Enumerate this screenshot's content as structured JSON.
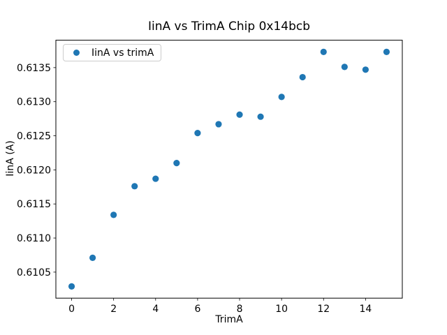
{
  "chart_data": {
    "type": "scatter",
    "title": "IinA vs TrimA Chip 0x14bcb",
    "xlabel": "TrimA",
    "ylabel": "IinA (A)",
    "legend": {
      "label": "IinA vs trimA",
      "position": "upper left"
    },
    "marker_color": "#1f77b4",
    "x": [
      0,
      1,
      2,
      3,
      4,
      5,
      6,
      7,
      8,
      9,
      10,
      11,
      12,
      13,
      14,
      15
    ],
    "y": [
      0.61029,
      0.61071,
      0.61134,
      0.61176,
      0.61187,
      0.6121,
      0.61254,
      0.61267,
      0.61281,
      0.61278,
      0.61307,
      0.61336,
      0.61373,
      0.61351,
      0.61347,
      0.61373
    ],
    "xlim": [
      -0.75,
      15.75
    ],
    "ylim": [
      0.610118,
      0.613902
    ],
    "xticks": [
      0,
      2,
      4,
      6,
      8,
      10,
      12,
      14
    ],
    "xtick_labels": [
      "0",
      "2",
      "4",
      "6",
      "8",
      "10",
      "12",
      "14"
    ],
    "yticks": [
      0.6105,
      0.611,
      0.6115,
      0.612,
      0.6125,
      0.613,
      0.6135
    ],
    "ytick_labels": [
      "0.6105",
      "0.6110",
      "0.6115",
      "0.6120",
      "0.6125",
      "0.6130",
      "0.6135"
    ],
    "grid": false
  }
}
